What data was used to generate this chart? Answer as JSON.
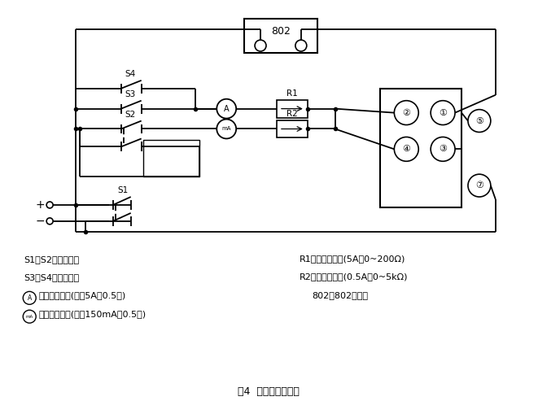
{
  "title": "图4  产品检测线路图",
  "bg_color": "#ffffff",
  "line_color": "#000000",
  "legend_left1": "S1、S2：双刀开关",
  "legend_left2": "S3、S4：单刀开关",
  "legend_left3": "、直流电流表(量程5A、0.5级)",
  "legend_left4": "、直流毫安表(量程150mA、0.5级)",
  "legend_right1": "R1、可调电阻器(5A、0~200Ω)",
  "legend_right2": "R2、可调电阻器(0.5A、0~5kΩ)",
  "legend_right3": "802、802毫秒表"
}
